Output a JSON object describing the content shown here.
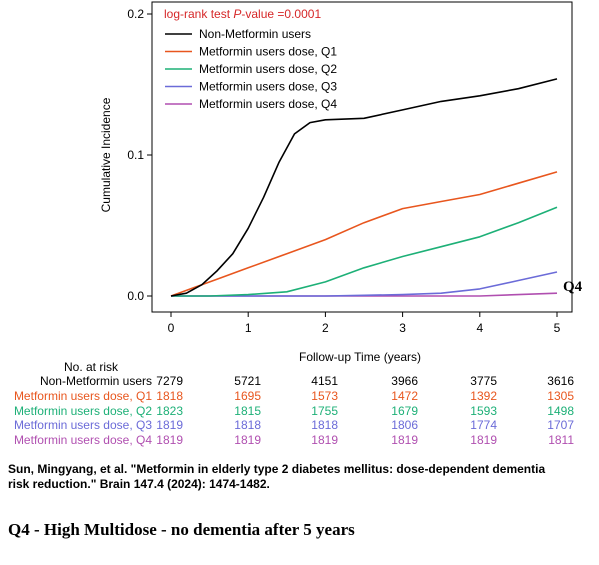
{
  "chart_data": {
    "type": "line",
    "title": "",
    "annotation": "log-rank test P-value =0.0001",
    "annotation_prefix": "log-rank test ",
    "annotation_p": "P",
    "annotation_suffix": "-value =0.0001",
    "xlabel": "Follow-up Time (years)",
    "ylabel": "Cumulative Incidence",
    "xlim": [
      0,
      5
    ],
    "ylim": [
      0,
      0.2
    ],
    "xticks": [
      "0",
      "1",
      "2",
      "3",
      "4",
      "5"
    ],
    "yticks": [
      "0.0",
      "0.1",
      "0.2"
    ],
    "legend_position": "top-left",
    "grid": false,
    "series": [
      {
        "name": "Non-Metformin users",
        "color": "#000000",
        "x": [
          0,
          0.2,
          0.4,
          0.6,
          0.8,
          1.0,
          1.2,
          1.4,
          1.6,
          1.8,
          2.0,
          2.5,
          3.0,
          3.5,
          4.0,
          4.5,
          5.0
        ],
        "y": [
          0,
          0.002,
          0.008,
          0.018,
          0.03,
          0.048,
          0.07,
          0.095,
          0.115,
          0.123,
          0.125,
          0.126,
          0.132,
          0.138,
          0.142,
          0.147,
          0.154
        ]
      },
      {
        "name": "Metformin users dose, Q1",
        "color": "#e8561e",
        "x": [
          0,
          0.3,
          0.6,
          1.0,
          1.5,
          2.0,
          2.5,
          3.0,
          3.5,
          4.0,
          4.5,
          5.0
        ],
        "y": [
          0,
          0.006,
          0.012,
          0.02,
          0.03,
          0.04,
          0.052,
          0.062,
          0.067,
          0.072,
          0.08,
          0.088
        ]
      },
      {
        "name": "Metformin users dose, Q2",
        "color": "#1db077",
        "x": [
          0,
          0.5,
          1.0,
          1.5,
          2.0,
          2.5,
          3.0,
          3.5,
          4.0,
          4.5,
          5.0
        ],
        "y": [
          0,
          0.0,
          0.001,
          0.003,
          0.01,
          0.02,
          0.028,
          0.035,
          0.042,
          0.052,
          0.063
        ]
      },
      {
        "name": "Metformin users dose, Q3",
        "color": "#6b6bd8",
        "x": [
          0,
          1.0,
          2.0,
          2.5,
          3.0,
          3.5,
          4.0,
          4.5,
          5.0
        ],
        "y": [
          0,
          0,
          0,
          0.0005,
          0.001,
          0.002,
          0.005,
          0.011,
          0.017
        ]
      },
      {
        "name": "Metformin users dose, Q4",
        "color": "#b04fb0",
        "x": [
          0,
          1.0,
          2.0,
          3.0,
          4.0,
          4.5,
          5.0
        ],
        "y": [
          0,
          0,
          0,
          0,
          0,
          0.001,
          0.002
        ]
      }
    ]
  },
  "q4_label": "Q4",
  "risk_table": {
    "header": "No. at risk",
    "rows": [
      {
        "label": "Non-Metformin users",
        "color": "#000000",
        "values": [
          "7279",
          "5721",
          "4151",
          "3966",
          "3775",
          "3616"
        ]
      },
      {
        "label": "Metformin users dose, Q1",
        "color": "#e8561e",
        "values": [
          "1818",
          "1695",
          "1573",
          "1472",
          "1392",
          "1305"
        ]
      },
      {
        "label": "Metformin users dose, Q2",
        "color": "#1db077",
        "values": [
          "1823",
          "1815",
          "1755",
          "1679",
          "1593",
          "1498"
        ]
      },
      {
        "label": "Metformin users dose, Q3",
        "color": "#6b6bd8",
        "values": [
          "1819",
          "1818",
          "1818",
          "1806",
          "1774",
          "1707"
        ]
      },
      {
        "label": "Metformin users dose, Q4",
        "color": "#b04fb0",
        "values": [
          "1819",
          "1819",
          "1819",
          "1819",
          "1819",
          "1811"
        ]
      }
    ]
  },
  "citation": "Sun, Mingyang, et al. \"Metformin in elderly type 2 diabetes mellitus: dose-dependent dementia risk reduction.\" Brain 147.4 (2024): 1474-1482.",
  "note": "Q4 - High Multidose - no dementia after 5 years"
}
